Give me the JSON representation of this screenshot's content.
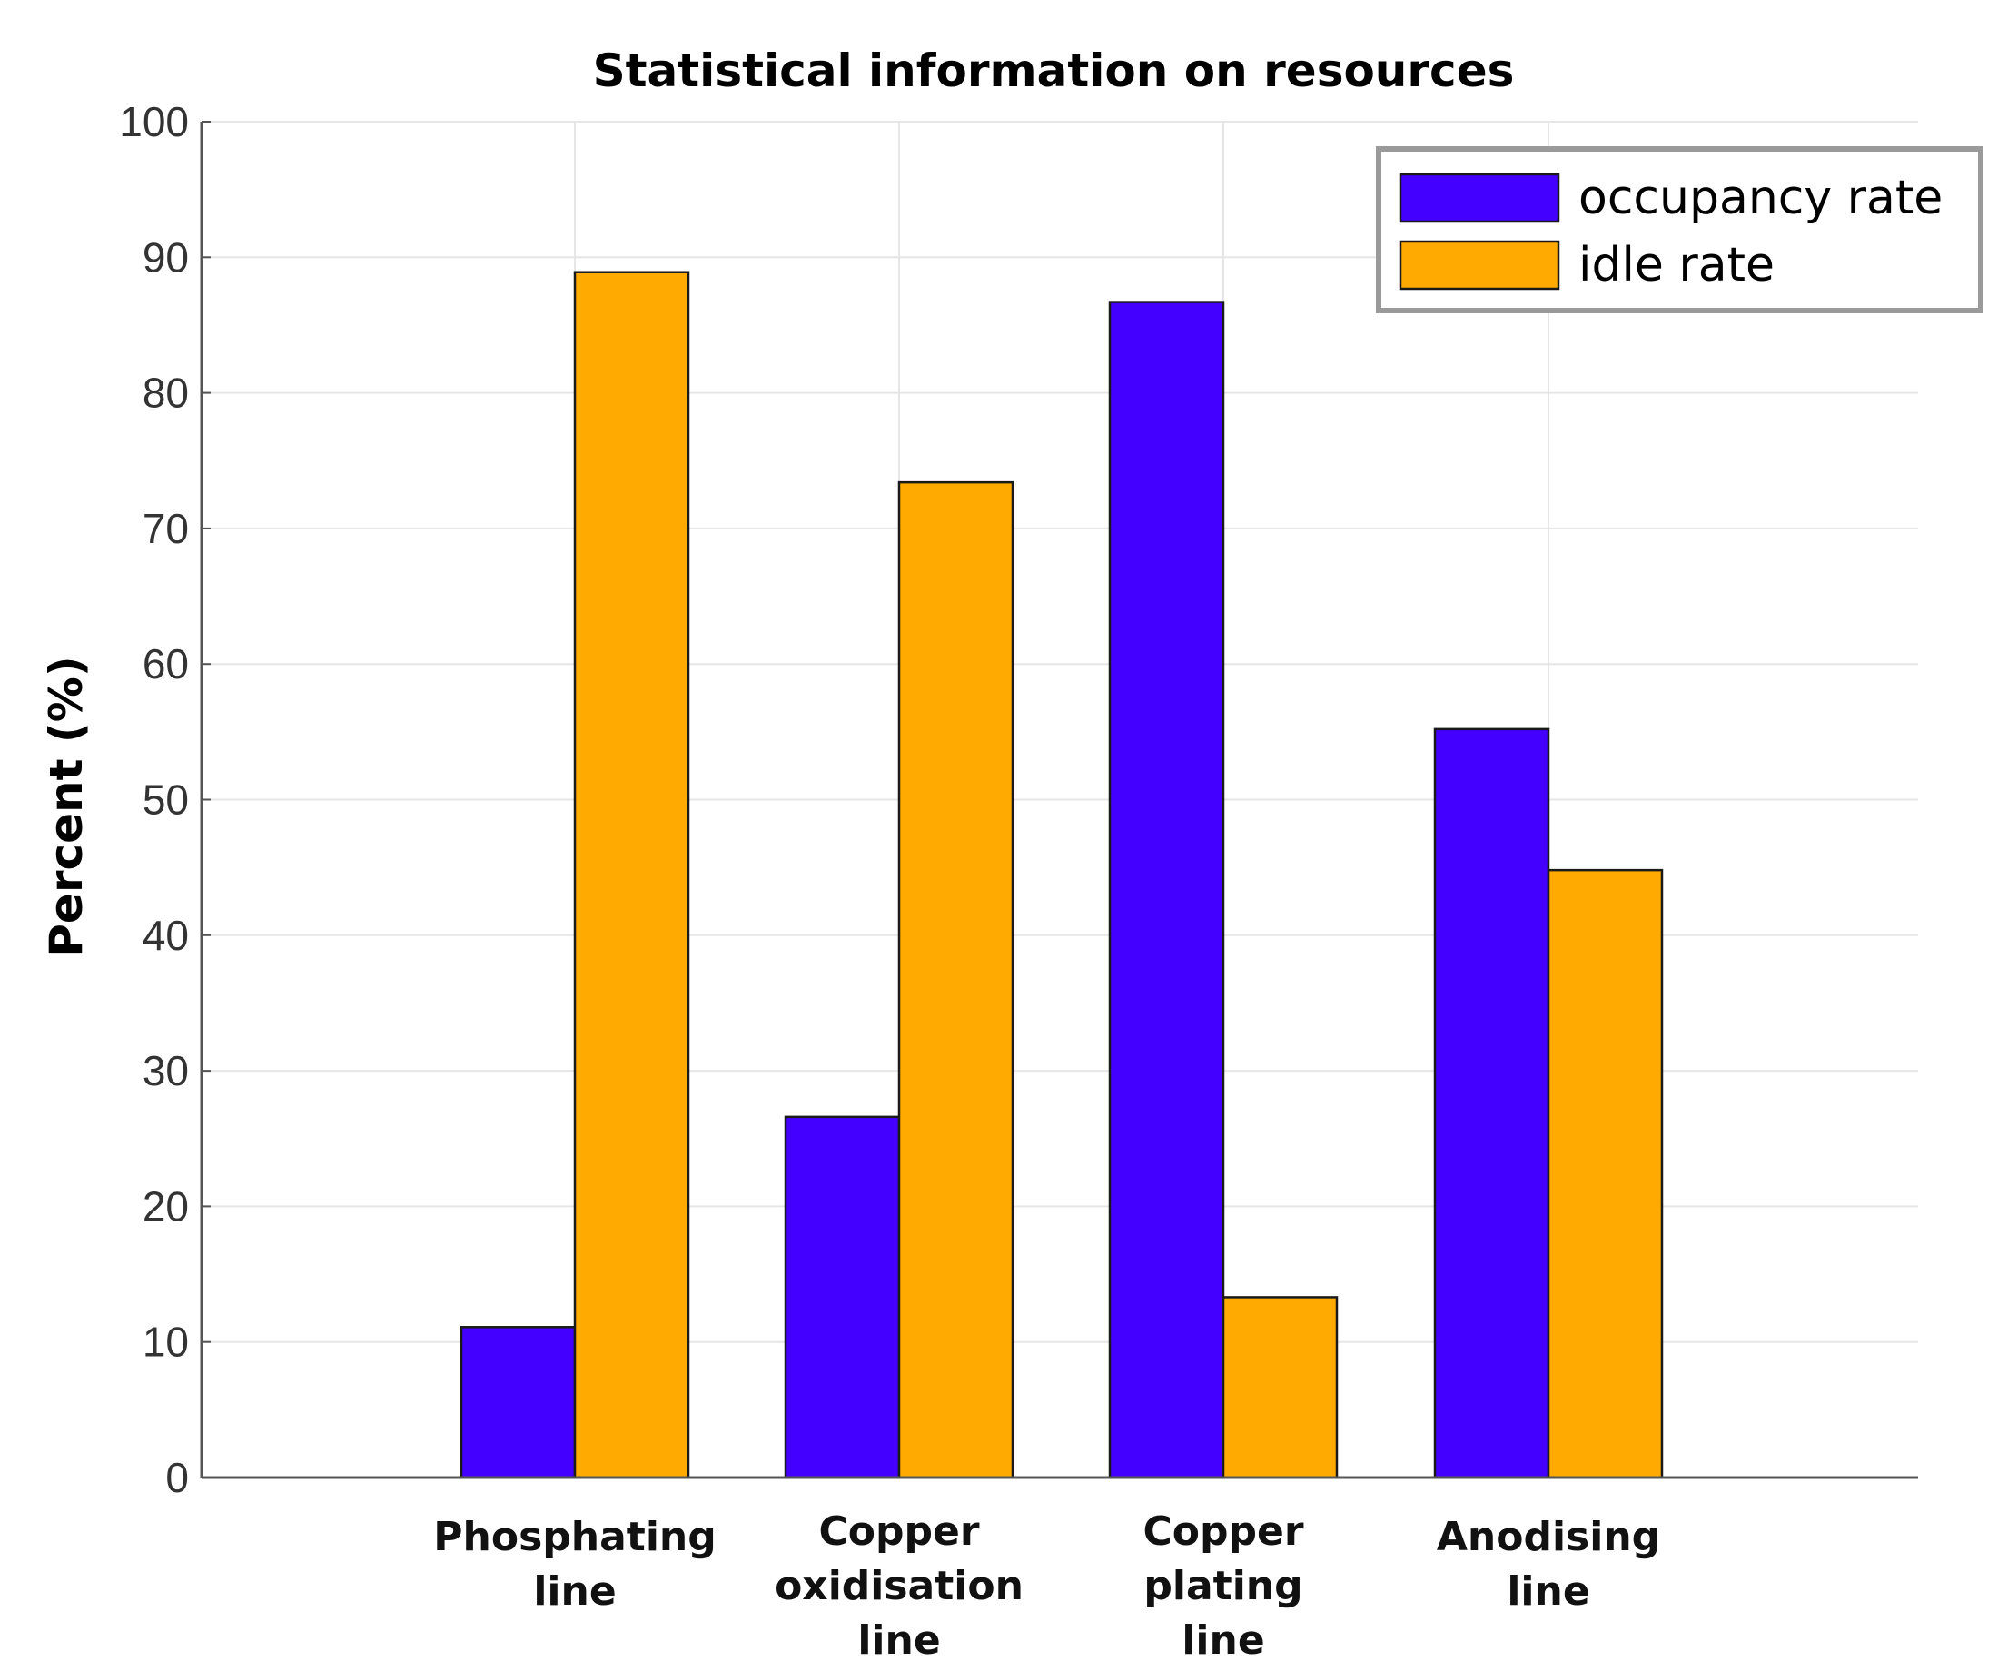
{
  "chart_data": {
    "type": "bar",
    "title": "Statistical information on resources",
    "xlabel": "",
    "ylabel": "Percent (%)",
    "ylim": [
      0,
      100
    ],
    "yticks": [
      0,
      10,
      20,
      30,
      40,
      50,
      60,
      70,
      80,
      90,
      100
    ],
    "grid": true,
    "legend_position": "top-right",
    "categories": [
      [
        "Phosphating",
        "line"
      ],
      [
        "Copper",
        "oxidisation",
        "line"
      ],
      [
        "Copper",
        "plating",
        "line"
      ],
      [
        "Anodising",
        "line"
      ]
    ],
    "series": [
      {
        "name": "occupancy rate",
        "color": "#4400ff",
        "values": [
          11.1,
          26.6,
          86.7,
          55.2
        ]
      },
      {
        "name": "idle rate",
        "color": "#ffaa00",
        "values": [
          88.9,
          73.4,
          13.3,
          44.8
        ]
      }
    ]
  }
}
